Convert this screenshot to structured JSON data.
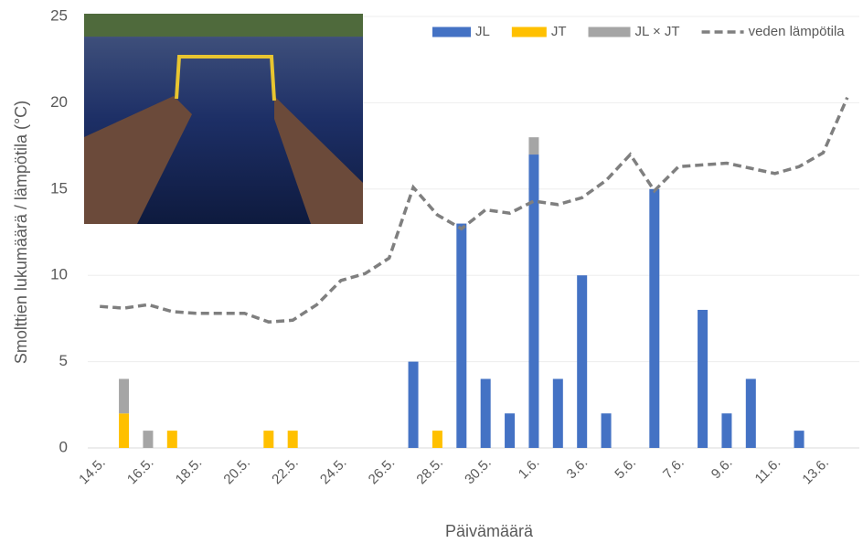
{
  "chart_data": {
    "type": "bar",
    "stacked": true,
    "xlabel": "Päivämäärä",
    "ylabel": "Smolttien lukumäärä / lämpötila (°C)",
    "categories": [
      "14.5.",
      null,
      "16.5.",
      null,
      "18.5.",
      null,
      "20.5.",
      null,
      "22.5.",
      null,
      "24.5.",
      null,
      "26.5.",
      null,
      "28.5.",
      null,
      "30.5.",
      null,
      "1.6.",
      null,
      "3.6.",
      null,
      "5.6.",
      null,
      "7.6.",
      null,
      "9.6.",
      null,
      "11.6.",
      null,
      "13.6.",
      null
    ],
    "series": [
      {
        "name": "JL",
        "color": "#4472c4",
        "type": "bar",
        "values": [
          null,
          null,
          null,
          null,
          null,
          null,
          null,
          null,
          null,
          null,
          null,
          null,
          null,
          5,
          null,
          13,
          4,
          2,
          17,
          4,
          10,
          2,
          null,
          15,
          null,
          8,
          2,
          4,
          null,
          1,
          null,
          null
        ]
      },
      {
        "name": "JT",
        "color": "#ffc000",
        "type": "bar",
        "values": [
          null,
          2,
          null,
          1,
          null,
          null,
          null,
          1,
          1,
          null,
          null,
          null,
          null,
          null,
          1,
          null,
          null,
          null,
          null,
          null,
          null,
          null,
          null,
          null,
          null,
          null,
          null,
          null,
          null,
          null,
          null,
          null
        ]
      },
      {
        "name": "JL × JT",
        "color": "#a5a5a5",
        "type": "bar",
        "values": [
          null,
          2,
          1,
          null,
          null,
          null,
          null,
          null,
          null,
          null,
          null,
          null,
          null,
          null,
          null,
          null,
          null,
          null,
          1,
          null,
          null,
          null,
          null,
          null,
          null,
          null,
          null,
          null,
          null,
          null,
          null,
          null
        ]
      },
      {
        "name": "veden lämpötila",
        "color": "#7f7f7f",
        "type": "line",
        "dashed": true,
        "values": [
          8.2,
          8.1,
          8.3,
          7.9,
          7.8,
          7.8,
          7.8,
          7.3,
          7.4,
          8.3,
          9.7,
          10.1,
          11.0,
          15.1,
          13.5,
          12.7,
          13.8,
          13.6,
          14.3,
          14.1,
          14.5,
          15.5,
          17.0,
          14.9,
          16.3,
          16.4,
          16.5,
          16.2,
          15.9,
          16.3,
          17.1,
          20.3
        ]
      }
    ],
    "ylim": [
      0,
      25
    ],
    "yticks": [
      0,
      5,
      10,
      15,
      20,
      25
    ],
    "grid": true,
    "legend": "top-right"
  }
}
